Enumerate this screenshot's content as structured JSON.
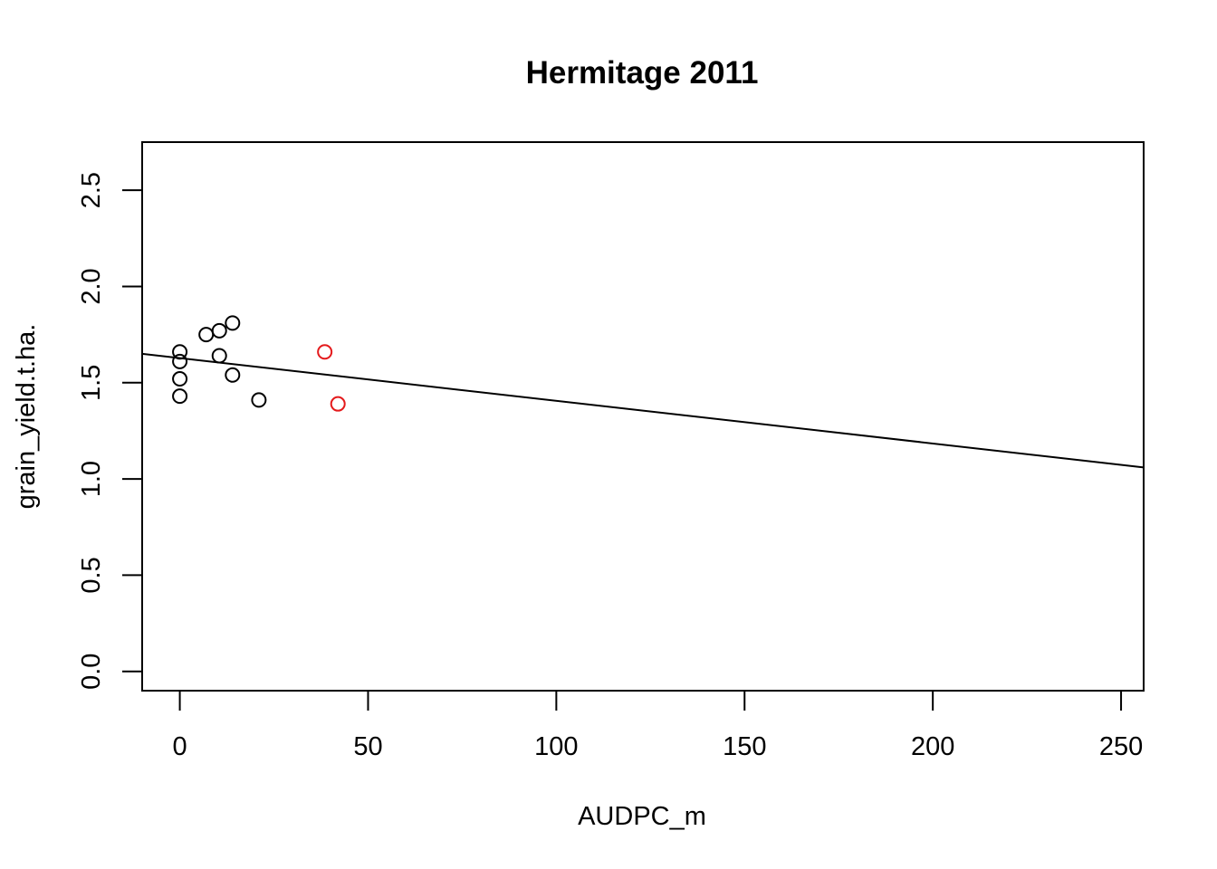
{
  "chart_data": {
    "type": "scatter",
    "title": "Hermitage 2011",
    "xlabel": "AUDPC_m",
    "ylabel": "grain_yield.t.ha.",
    "xlim": [
      -10,
      256
    ],
    "ylim": [
      -0.1,
      2.75
    ],
    "x_ticks": [
      0,
      50,
      100,
      150,
      200,
      250
    ],
    "x_tick_labels": [
      "0",
      "50",
      "100",
      "150",
      "200",
      "250"
    ],
    "y_ticks": [
      0.0,
      0.5,
      1.0,
      1.5,
      2.0,
      2.5
    ],
    "y_tick_labels": [
      "0.0",
      "0.5",
      "1.0",
      "1.5",
      "2.0",
      "2.5"
    ],
    "grid": false,
    "series": [
      {
        "color": "#000000",
        "points": [
          {
            "x": 0,
            "y": 1.66
          },
          {
            "x": 0,
            "y": 1.61
          },
          {
            "x": 0,
            "y": 1.52
          },
          {
            "x": 0,
            "y": 1.43
          },
          {
            "x": 7,
            "y": 1.75
          },
          {
            "x": 10.5,
            "y": 1.77
          },
          {
            "x": 10.5,
            "y": 1.64
          },
          {
            "x": 14,
            "y": 1.81
          },
          {
            "x": 14,
            "y": 1.54
          },
          {
            "x": 21,
            "y": 1.41
          }
        ]
      },
      {
        "color": "#e41a1c",
        "points": [
          {
            "x": 38.5,
            "y": 1.66
          },
          {
            "x": 42,
            "y": 1.39
          }
        ]
      }
    ],
    "regression_line": {
      "color": "#000000",
      "points": [
        {
          "x": -10,
          "y": 1.65
        },
        {
          "x": 256,
          "y": 1.06
        }
      ]
    }
  }
}
